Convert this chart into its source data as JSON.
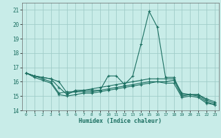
{
  "title": "",
  "xlabel": "Humidex (Indice chaleur)",
  "xlim": [
    -0.5,
    23.5
  ],
  "ylim": [
    14,
    21.5
  ],
  "yticks": [
    14,
    15,
    16,
    17,
    18,
    19,
    20,
    21
  ],
  "xticks": [
    0,
    1,
    2,
    3,
    4,
    5,
    6,
    7,
    8,
    9,
    10,
    11,
    12,
    13,
    14,
    15,
    16,
    17,
    18,
    19,
    20,
    21,
    22,
    23
  ],
  "background_color": "#c8ece8",
  "grid_color": "#a0ccc8",
  "line_color": "#1a6e60",
  "series": [
    {
      "x": [
        0,
        1,
        2,
        3,
        4,
        5,
        6,
        7,
        8,
        9,
        10,
        11,
        12,
        13,
        14,
        15,
        16,
        17,
        18,
        19,
        20,
        21,
        22,
        23
      ],
      "y": [
        16.6,
        16.4,
        16.3,
        16.2,
        15.6,
        15.1,
        15.4,
        15.4,
        15.4,
        15.4,
        16.4,
        16.4,
        15.8,
        16.4,
        18.6,
        20.9,
        19.8,
        16.3,
        16.3,
        15.1,
        15.1,
        15.1,
        14.8,
        14.6
      ]
    },
    {
      "x": [
        0,
        1,
        2,
        3,
        4,
        5,
        6,
        7,
        8,
        9,
        10,
        11,
        12,
        13,
        14,
        15,
        16,
        17,
        18,
        19,
        20,
        21,
        22,
        23
      ],
      "y": [
        16.6,
        16.4,
        16.3,
        16.2,
        16.0,
        15.2,
        15.3,
        15.4,
        15.5,
        15.6,
        15.7,
        15.8,
        15.9,
        16.0,
        16.1,
        16.2,
        16.2,
        16.2,
        16.2,
        15.2,
        15.1,
        15.1,
        14.7,
        14.5
      ]
    },
    {
      "x": [
        0,
        1,
        2,
        3,
        4,
        5,
        6,
        7,
        8,
        9,
        10,
        11,
        12,
        13,
        14,
        15,
        16,
        17,
        18,
        19,
        20,
        21,
        22,
        23
      ],
      "y": [
        16.6,
        16.4,
        16.2,
        16.0,
        15.2,
        15.3,
        15.3,
        15.3,
        15.3,
        15.4,
        15.5,
        15.6,
        15.7,
        15.8,
        15.9,
        16.0,
        16.0,
        16.0,
        16.1,
        15.0,
        15.1,
        15.0,
        14.6,
        14.4
      ]
    },
    {
      "x": [
        0,
        1,
        2,
        3,
        4,
        5,
        6,
        7,
        8,
        9,
        10,
        11,
        12,
        13,
        14,
        15,
        16,
        17,
        18,
        19,
        20,
        21,
        22,
        23
      ],
      "y": [
        16.6,
        16.3,
        16.1,
        15.9,
        15.1,
        15.0,
        15.1,
        15.2,
        15.2,
        15.3,
        15.4,
        15.5,
        15.6,
        15.7,
        15.8,
        15.9,
        16.0,
        15.9,
        15.9,
        14.9,
        15.0,
        14.9,
        14.5,
        14.4
      ]
    }
  ]
}
